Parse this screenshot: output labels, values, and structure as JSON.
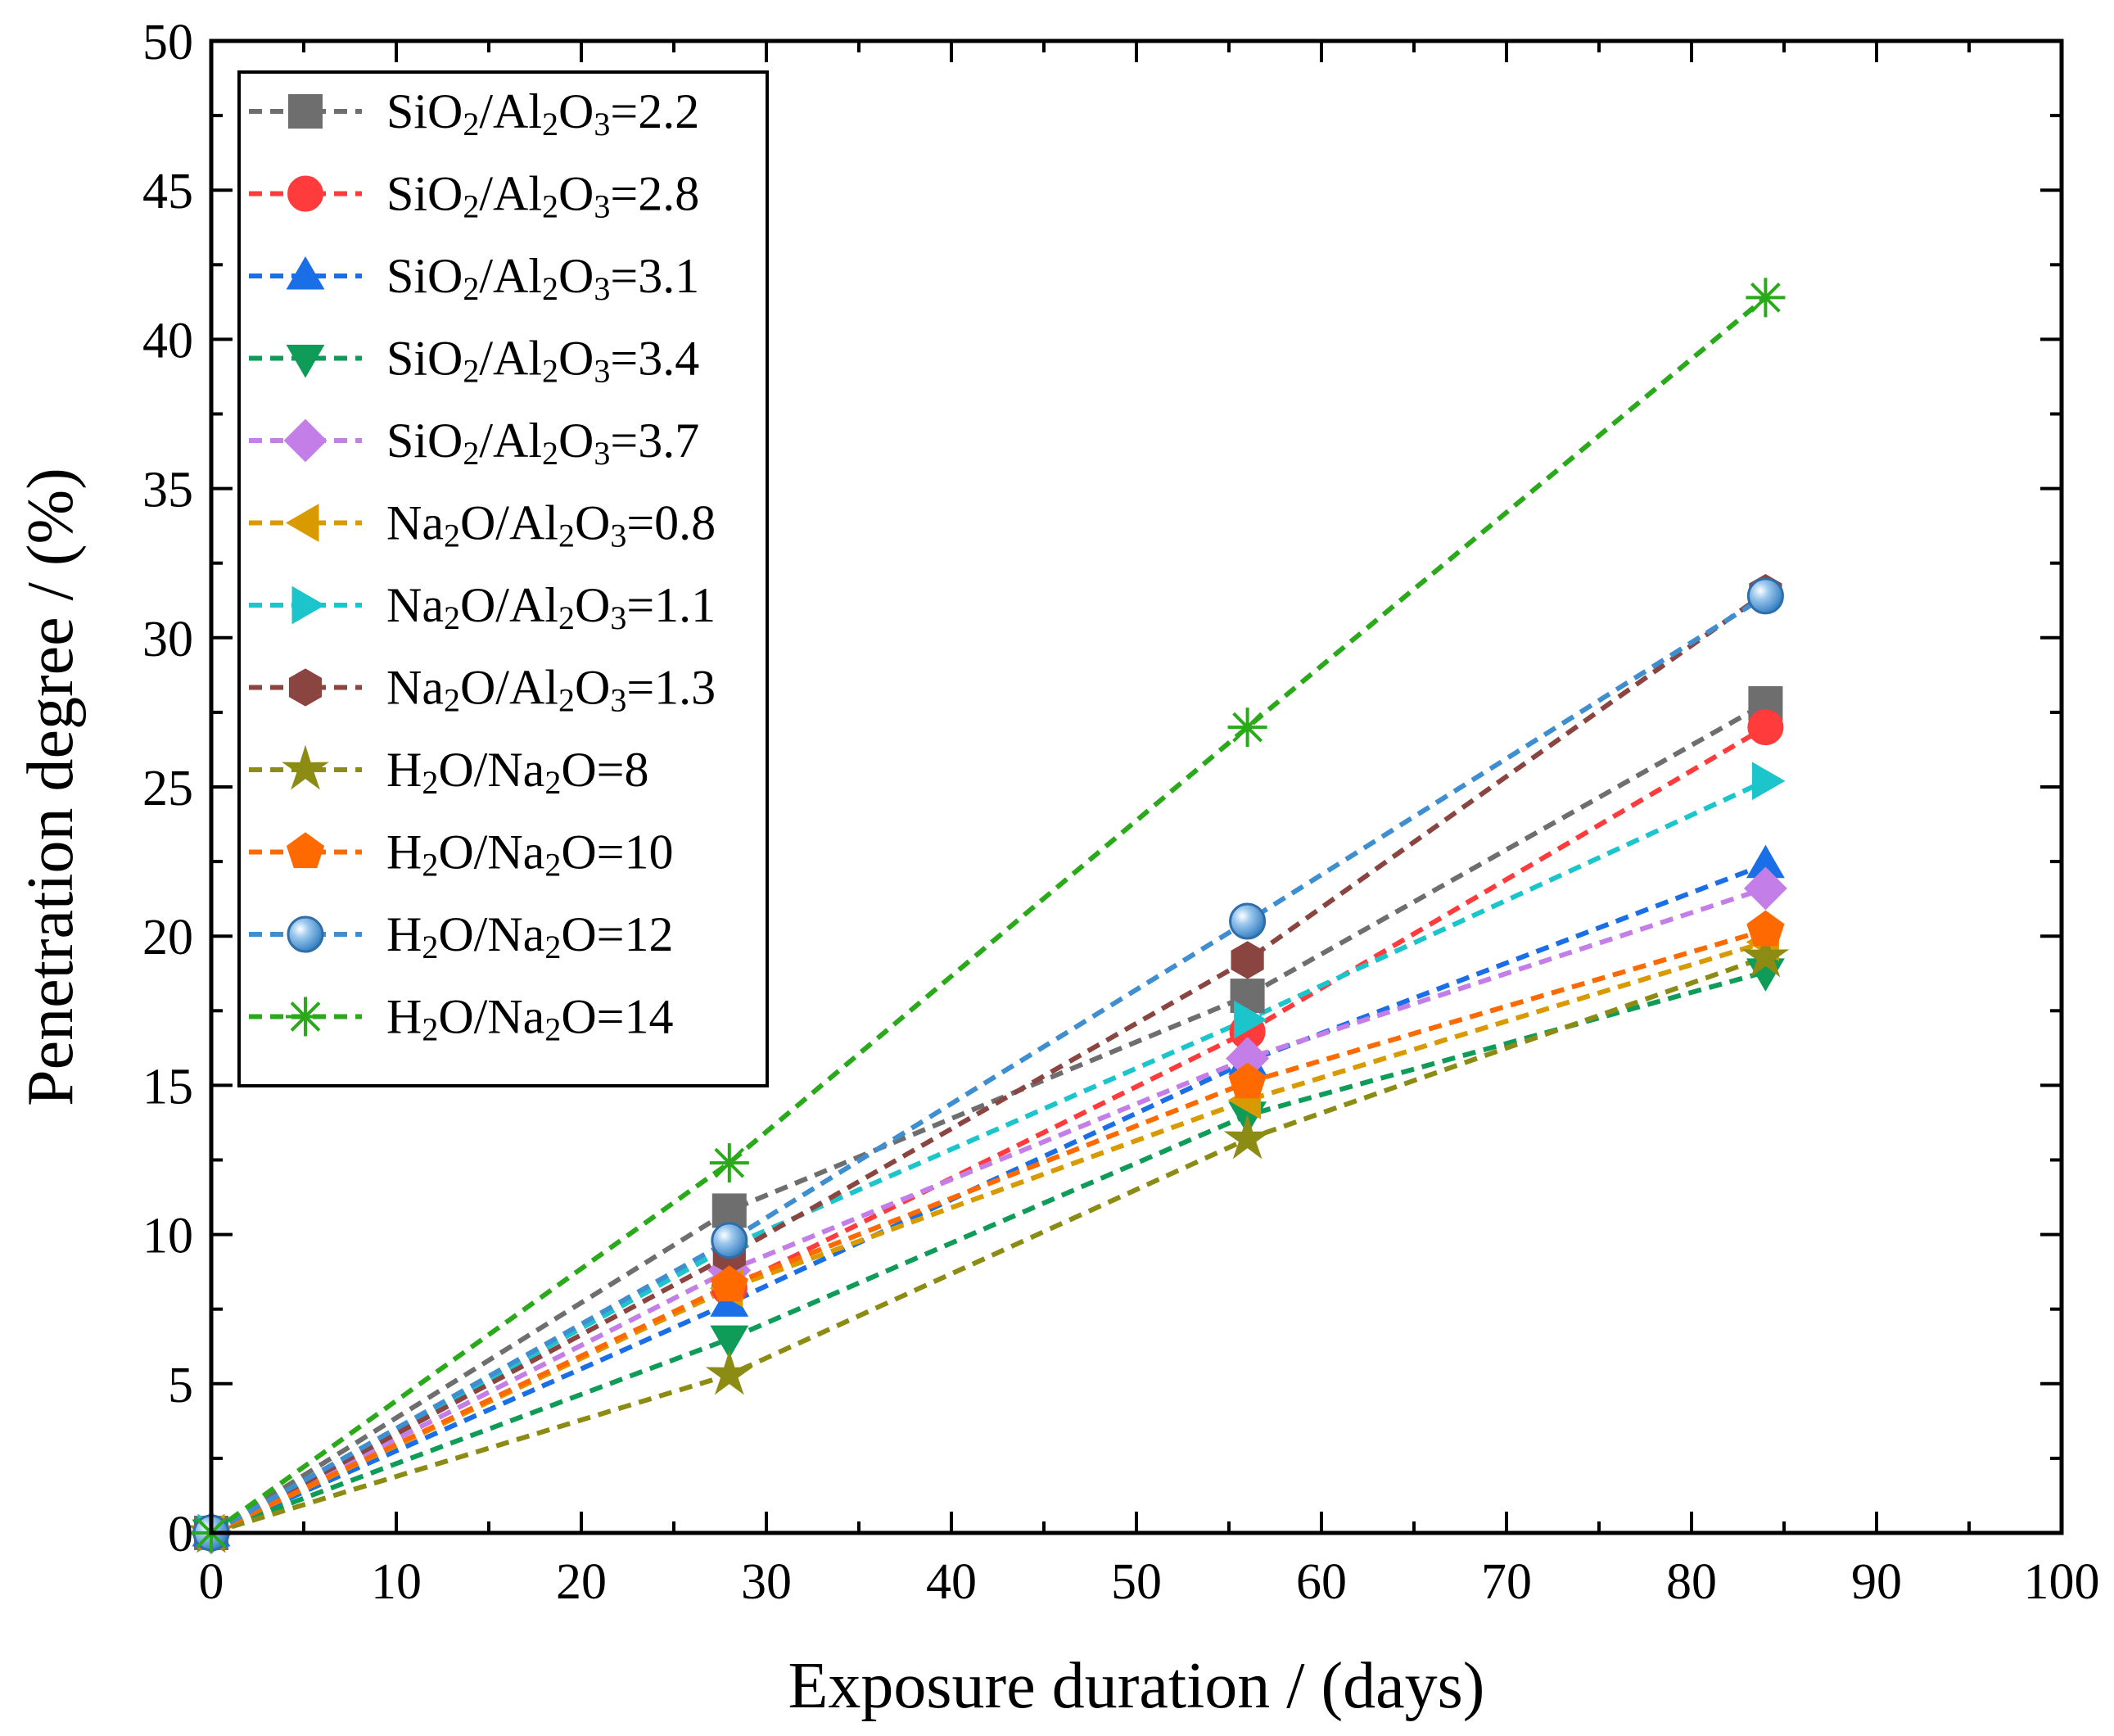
{
  "chart_data": {
    "type": "line",
    "xlabel": "Exposure duration / (days)",
    "ylabel": "Penetration degree / (%)",
    "xlim": [
      0,
      100
    ],
    "ylim": [
      0,
      50
    ],
    "xticks": [
      0,
      10,
      20,
      30,
      40,
      50,
      60,
      70,
      80,
      90,
      100
    ],
    "yticks": [
      0,
      5,
      10,
      15,
      20,
      25,
      30,
      35,
      40,
      45,
      50
    ],
    "grid": false,
    "legend_position": "top-left",
    "line_style": "dashed",
    "x": [
      0,
      28,
      56,
      84
    ],
    "series": [
      {
        "name": "SiO2/Al2O3=2.2",
        "label_parts": [
          [
            "SiO",
            ""
          ],
          [
            "2",
            "sub"
          ],
          [
            "/Al",
            ""
          ],
          [
            "2",
            "sub"
          ],
          [
            "O",
            ""
          ],
          [
            "3",
            "sub"
          ],
          [
            "=2.2",
            ""
          ]
        ],
        "color": "#6e6e6e",
        "marker": "square",
        "values": [
          0,
          10.8,
          18.0,
          27.8
        ]
      },
      {
        "name": "SiO2/Al2O3=2.8",
        "label_parts": [
          [
            "SiO",
            ""
          ],
          [
            "2",
            "sub"
          ],
          [
            "/Al",
            ""
          ],
          [
            "2",
            "sub"
          ],
          [
            "O",
            ""
          ],
          [
            "3",
            "sub"
          ],
          [
            "=2.8",
            ""
          ]
        ],
        "color": "#ff3b3b",
        "marker": "circle",
        "values": [
          0,
          8.2,
          16.8,
          27.0
        ]
      },
      {
        "name": "SiO2/Al2O3=3.1",
        "label_parts": [
          [
            "SiO",
            ""
          ],
          [
            "2",
            "sub"
          ],
          [
            "/Al",
            ""
          ],
          [
            "2",
            "sub"
          ],
          [
            "O",
            ""
          ],
          [
            "3",
            "sub"
          ],
          [
            "=3.1",
            ""
          ]
        ],
        "color": "#1a6fe6",
        "marker": "triangle-up",
        "values": [
          0,
          7.7,
          15.8,
          22.4
        ]
      },
      {
        "name": "SiO2/Al2O3=3.4",
        "label_parts": [
          [
            "SiO",
            ""
          ],
          [
            "2",
            "sub"
          ],
          [
            "/Al",
            ""
          ],
          [
            "2",
            "sub"
          ],
          [
            "O",
            ""
          ],
          [
            "3",
            "sub"
          ],
          [
            "=3.4",
            ""
          ]
        ],
        "color": "#0f9b58",
        "marker": "triangle-down",
        "values": [
          0,
          6.5,
          14.0,
          18.8
        ]
      },
      {
        "name": "SiO2/Al2O3=3.7",
        "label_parts": [
          [
            "SiO",
            ""
          ],
          [
            "2",
            "sub"
          ],
          [
            "/Al",
            ""
          ],
          [
            "2",
            "sub"
          ],
          [
            "O",
            ""
          ],
          [
            "3",
            "sub"
          ],
          [
            "=3.7",
            ""
          ]
        ],
        "color": "#c47ee8",
        "marker": "diamond",
        "values": [
          0,
          8.8,
          15.9,
          21.6
        ]
      },
      {
        "name": "Na2O/Al2O3=0.8",
        "label_parts": [
          [
            "Na",
            ""
          ],
          [
            "2",
            "sub"
          ],
          [
            "O/Al",
            ""
          ],
          [
            "2",
            "sub"
          ],
          [
            "O",
            ""
          ],
          [
            "3",
            "sub"
          ],
          [
            "=0.8",
            ""
          ]
        ],
        "color": "#d99a00",
        "marker": "triangle-left",
        "values": [
          0,
          8.2,
          14.5,
          19.8
        ]
      },
      {
        "name": "Na2O/Al2O3=1.1",
        "label_parts": [
          [
            "Na",
            ""
          ],
          [
            "2",
            "sub"
          ],
          [
            "O/Al",
            ""
          ],
          [
            "2",
            "sub"
          ],
          [
            "O",
            ""
          ],
          [
            "3",
            "sub"
          ],
          [
            "=1.1",
            ""
          ]
        ],
        "color": "#1cc4cc",
        "marker": "triangle-right",
        "values": [
          0,
          9.6,
          17.2,
          25.2
        ]
      },
      {
        "name": "Na2O/Al2O3=1.3",
        "label_parts": [
          [
            "Na",
            ""
          ],
          [
            "2",
            "sub"
          ],
          [
            "O/Al",
            ""
          ],
          [
            "2",
            "sub"
          ],
          [
            "O",
            ""
          ],
          [
            "3",
            "sub"
          ],
          [
            "=1.3",
            ""
          ]
        ],
        "color": "#8b4540",
        "marker": "hexagon",
        "values": [
          0,
          9.3,
          19.2,
          31.5
        ]
      },
      {
        "name": "H2O/Na2O=8",
        "label_parts": [
          [
            "H",
            ""
          ],
          [
            "2",
            "sub"
          ],
          [
            "O/Na",
            ""
          ],
          [
            "2",
            "sub"
          ],
          [
            "O=8",
            ""
          ]
        ],
        "color": "#8c8c14",
        "marker": "star",
        "values": [
          0,
          5.3,
          13.2,
          19.3
        ]
      },
      {
        "name": "H2O/Na2O=10",
        "label_parts": [
          [
            "H",
            ""
          ],
          [
            "2",
            "sub"
          ],
          [
            "O/Na",
            ""
          ],
          [
            "2",
            "sub"
          ],
          [
            "O=10",
            ""
          ]
        ],
        "color": "#ff6a00",
        "marker": "pentagon",
        "values": [
          0,
          8.3,
          15.1,
          20.2
        ]
      },
      {
        "name": "H2O/Na2O=12",
        "label_parts": [
          [
            "H",
            ""
          ],
          [
            "2",
            "sub"
          ],
          [
            "O/Na",
            ""
          ],
          [
            "2",
            "sub"
          ],
          [
            "O=12",
            ""
          ]
        ],
        "color": "#3e8ed0",
        "marker": "sphere",
        "values": [
          0,
          9.8,
          20.5,
          31.4
        ]
      },
      {
        "name": "H2O/Na2O=14",
        "label_parts": [
          [
            "H",
            ""
          ],
          [
            "2",
            "sub"
          ],
          [
            "O/Na",
            ""
          ],
          [
            "2",
            "sub"
          ],
          [
            "O=14",
            ""
          ]
        ],
        "color": "#2aaa1a",
        "marker": "asterisk",
        "values": [
          0,
          12.4,
          27.0,
          41.4
        ]
      }
    ]
  }
}
